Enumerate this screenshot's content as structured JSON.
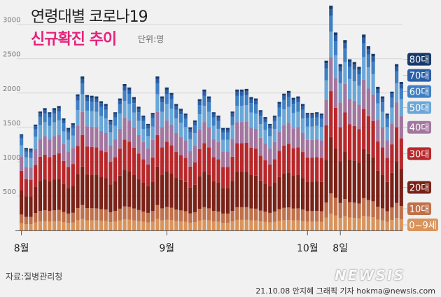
{
  "title": "연령대별 코로나19",
  "subtitle": "신규확진 추이",
  "unit": "단위:명",
  "source": "자료:질병관리청",
  "credit": "21.10.08 안지혜 그래픽 기자 hokma@newsis.com",
  "logo": "NEWSIS",
  "chart_data": {
    "type": "bar",
    "stacked": true,
    "ylim": [
      0,
      3200
    ],
    "yticks": [
      500,
      1000,
      1500,
      2000,
      2500,
      3000
    ],
    "ytick_labels": [
      "500",
      "1000",
      "1500",
      "2000",
      "2500",
      "3000"
    ],
    "x_labels": [
      {
        "index": 0,
        "label": "8월"
      },
      {
        "index": 31,
        "label": "9월"
      },
      {
        "index": 61,
        "label": "10월"
      },
      {
        "index": 68,
        "label": "8일"
      }
    ],
    "totals": [
      1400,
      1200,
      1190,
      1540,
      1730,
      1780,
      1720,
      1780,
      1810,
      1630,
      1490,
      1560,
      1980,
      2240,
      1970,
      1960,
      1950,
      1880,
      1840,
      1610,
      1720,
      1920,
      2130,
      2080,
      1940,
      1800,
      1670,
      1550,
      1710,
      2240,
      1950,
      2080,
      2000,
      1840,
      1770,
      1700,
      1500,
      1600,
      1910,
      2050,
      1950,
      1720,
      1670,
      1490,
      1490,
      1730,
      2050,
      2050,
      2060,
      1940,
      1920,
      1750,
      1650,
      1550,
      1670,
      1870,
      1990,
      2030,
      1930,
      1950,
      1840,
      1710,
      1710,
      1720,
      1700,
      2470,
      3270,
      2880,
      2420,
      2770,
      2490,
      2450,
      2380,
      2850,
      2680,
      2570,
      2090,
      1950,
      1700,
      2020,
      2420,
      2160
    ],
    "series": [
      {
        "name": "0~9세",
        "color": "#d9945c",
        "shares": [
          0.075,
          0.075,
          0.075,
          0.075,
          0.075,
          0.075,
          0.075,
          0.075,
          0.075,
          0.075,
          0.075,
          0.075,
          0.075,
          0.075,
          0.075,
          0.075,
          0.075,
          0.075,
          0.075,
          0.075,
          0.075,
          0.075,
          0.075,
          0.075,
          0.075,
          0.075,
          0.075,
          0.075,
          0.075,
          0.075,
          0.075,
          0.075,
          0.075,
          0.075,
          0.075,
          0.075,
          0.075,
          0.075,
          0.075,
          0.075,
          0.075,
          0.075,
          0.075,
          0.075,
          0.075,
          0.075,
          0.075,
          0.075,
          0.075,
          0.075,
          0.075,
          0.075,
          0.075,
          0.075,
          0.075,
          0.075,
          0.075,
          0.075,
          0.075,
          0.075,
          0.075,
          0.075,
          0.075,
          0.075,
          0.075,
          0.075,
          0.075,
          0.075,
          0.075,
          0.075,
          0.075,
          0.075,
          0.075,
          0.075,
          0.075,
          0.075,
          0.075,
          0.075,
          0.075,
          0.075,
          0.075,
          0.075
        ]
      },
      {
        "name": "10대",
        "color": "#c0704a",
        "shares": [
          0.09,
          0.09,
          0.09,
          0.09,
          0.09,
          0.09,
          0.09,
          0.09,
          0.09,
          0.09,
          0.09,
          0.09,
          0.09,
          0.09,
          0.09,
          0.09,
          0.09,
          0.09,
          0.09,
          0.09,
          0.09,
          0.09,
          0.09,
          0.09,
          0.09,
          0.09,
          0.09,
          0.09,
          0.09,
          0.09,
          0.09,
          0.09,
          0.09,
          0.09,
          0.09,
          0.09,
          0.09,
          0.09,
          0.09,
          0.09,
          0.09,
          0.09,
          0.09,
          0.09,
          0.09,
          0.09,
          0.09,
          0.09,
          0.09,
          0.09,
          0.09,
          0.09,
          0.09,
          0.09,
          0.09,
          0.09,
          0.09,
          0.09,
          0.09,
          0.09,
          0.09,
          0.09,
          0.09,
          0.09,
          0.09,
          0.09,
          0.09,
          0.09,
          0.09,
          0.09,
          0.09,
          0.09,
          0.09,
          0.09,
          0.09,
          0.09,
          0.09,
          0.09,
          0.09,
          0.09,
          0.09,
          0.09
        ]
      },
      {
        "name": "20대",
        "color": "#7a2118",
        "shares": [
          0.25,
          0.25,
          0.25,
          0.25,
          0.25,
          0.25,
          0.25,
          0.25,
          0.25,
          0.25,
          0.25,
          0.25,
          0.25,
          0.25,
          0.25,
          0.25,
          0.25,
          0.25,
          0.25,
          0.25,
          0.25,
          0.25,
          0.25,
          0.25,
          0.25,
          0.25,
          0.25,
          0.25,
          0.25,
          0.25,
          0.25,
          0.25,
          0.25,
          0.25,
          0.25,
          0.25,
          0.25,
          0.25,
          0.25,
          0.25,
          0.25,
          0.25,
          0.25,
          0.25,
          0.25,
          0.25,
          0.25,
          0.25,
          0.25,
          0.25,
          0.25,
          0.25,
          0.25,
          0.25,
          0.25,
          0.25,
          0.25,
          0.25,
          0.25,
          0.25,
          0.25,
          0.25,
          0.25,
          0.25,
          0.25,
          0.25,
          0.25,
          0.25,
          0.25,
          0.25,
          0.25,
          0.25,
          0.25,
          0.25,
          0.25,
          0.25,
          0.25,
          0.25,
          0.25,
          0.25,
          0.25,
          0.25
        ]
      },
      {
        "name": "30대",
        "color": "#b8282b",
        "shares": [
          0.205,
          0.205,
          0.205,
          0.205,
          0.205,
          0.205,
          0.205,
          0.205,
          0.205,
          0.205,
          0.205,
          0.205,
          0.205,
          0.205,
          0.205,
          0.205,
          0.205,
          0.205,
          0.205,
          0.205,
          0.205,
          0.205,
          0.205,
          0.205,
          0.205,
          0.205,
          0.205,
          0.205,
          0.205,
          0.205,
          0.205,
          0.205,
          0.205,
          0.205,
          0.205,
          0.205,
          0.205,
          0.205,
          0.205,
          0.205,
          0.205,
          0.205,
          0.205,
          0.205,
          0.205,
          0.205,
          0.205,
          0.205,
          0.205,
          0.205,
          0.205,
          0.205,
          0.205,
          0.205,
          0.205,
          0.205,
          0.205,
          0.205,
          0.205,
          0.205,
          0.205,
          0.205,
          0.205,
          0.205,
          0.205,
          0.205,
          0.205,
          0.205,
          0.205,
          0.205,
          0.205,
          0.205,
          0.205,
          0.205,
          0.205,
          0.205,
          0.205,
          0.205,
          0.205,
          0.205,
          0.205,
          0.205
        ]
      },
      {
        "name": "40대",
        "color": "#a2769f",
        "shares": [
          0.15,
          0.15,
          0.15,
          0.15,
          0.15,
          0.15,
          0.15,
          0.15,
          0.15,
          0.15,
          0.15,
          0.15,
          0.15,
          0.15,
          0.15,
          0.15,
          0.15,
          0.15,
          0.15,
          0.15,
          0.15,
          0.15,
          0.15,
          0.15,
          0.15,
          0.15,
          0.15,
          0.15,
          0.15,
          0.15,
          0.15,
          0.15,
          0.15,
          0.15,
          0.15,
          0.15,
          0.15,
          0.15,
          0.15,
          0.15,
          0.15,
          0.15,
          0.15,
          0.15,
          0.15,
          0.15,
          0.15,
          0.15,
          0.15,
          0.15,
          0.15,
          0.15,
          0.15,
          0.15,
          0.15,
          0.15,
          0.15,
          0.15,
          0.15,
          0.15,
          0.15,
          0.15,
          0.15,
          0.15,
          0.15,
          0.15,
          0.15,
          0.15,
          0.15,
          0.15,
          0.15,
          0.15,
          0.15,
          0.15,
          0.15,
          0.15,
          0.15,
          0.15,
          0.15,
          0.15,
          0.15,
          0.15
        ]
      },
      {
        "name": "50대",
        "color": "#6aa7d8",
        "shares": [
          0.115,
          0.115,
          0.115,
          0.115,
          0.115,
          0.115,
          0.115,
          0.115,
          0.115,
          0.115,
          0.115,
          0.115,
          0.115,
          0.115,
          0.115,
          0.115,
          0.115,
          0.115,
          0.115,
          0.115,
          0.115,
          0.115,
          0.115,
          0.115,
          0.115,
          0.115,
          0.115,
          0.115,
          0.115,
          0.115,
          0.115,
          0.115,
          0.115,
          0.115,
          0.115,
          0.115,
          0.115,
          0.115,
          0.115,
          0.115,
          0.115,
          0.115,
          0.115,
          0.115,
          0.115,
          0.115,
          0.115,
          0.115,
          0.115,
          0.115,
          0.115,
          0.115,
          0.115,
          0.115,
          0.115,
          0.115,
          0.115,
          0.115,
          0.115,
          0.115,
          0.115,
          0.115,
          0.115,
          0.115,
          0.115,
          0.115,
          0.115,
          0.115,
          0.115,
          0.115,
          0.115,
          0.115,
          0.115,
          0.115,
          0.115,
          0.115,
          0.115,
          0.115,
          0.115,
          0.115,
          0.115,
          0.115
        ]
      },
      {
        "name": "60대",
        "color": "#3f7fc4",
        "shares": [
          0.07,
          0.07,
          0.07,
          0.07,
          0.07,
          0.07,
          0.07,
          0.07,
          0.07,
          0.07,
          0.07,
          0.07,
          0.07,
          0.07,
          0.07,
          0.07,
          0.07,
          0.07,
          0.07,
          0.07,
          0.07,
          0.07,
          0.07,
          0.07,
          0.07,
          0.07,
          0.07,
          0.07,
          0.07,
          0.07,
          0.07,
          0.07,
          0.07,
          0.07,
          0.07,
          0.07,
          0.07,
          0.07,
          0.07,
          0.07,
          0.07,
          0.07,
          0.07,
          0.07,
          0.07,
          0.07,
          0.07,
          0.07,
          0.07,
          0.07,
          0.07,
          0.07,
          0.07,
          0.07,
          0.07,
          0.07,
          0.07,
          0.07,
          0.07,
          0.07,
          0.07,
          0.07,
          0.07,
          0.07,
          0.07,
          0.07,
          0.07,
          0.07,
          0.07,
          0.07,
          0.07,
          0.07,
          0.07,
          0.07,
          0.07,
          0.07,
          0.07,
          0.07,
          0.07,
          0.07,
          0.07,
          0.07
        ]
      },
      {
        "name": "70대",
        "color": "#2a5ea6",
        "shares": [
          0.03,
          0.03,
          0.03,
          0.03,
          0.03,
          0.03,
          0.03,
          0.03,
          0.03,
          0.03,
          0.03,
          0.03,
          0.03,
          0.03,
          0.03,
          0.03,
          0.03,
          0.03,
          0.03,
          0.03,
          0.03,
          0.03,
          0.03,
          0.03,
          0.03,
          0.03,
          0.03,
          0.03,
          0.03,
          0.03,
          0.03,
          0.03,
          0.03,
          0.03,
          0.03,
          0.03,
          0.03,
          0.03,
          0.03,
          0.03,
          0.03,
          0.03,
          0.03,
          0.03,
          0.03,
          0.03,
          0.03,
          0.03,
          0.03,
          0.03,
          0.03,
          0.03,
          0.03,
          0.03,
          0.03,
          0.03,
          0.03,
          0.03,
          0.03,
          0.03,
          0.03,
          0.03,
          0.03,
          0.03,
          0.03,
          0.03,
          0.03,
          0.03,
          0.03,
          0.03,
          0.03,
          0.03,
          0.03,
          0.03,
          0.03,
          0.03,
          0.03,
          0.03,
          0.03,
          0.03,
          0.03,
          0.03
        ]
      },
      {
        "name": "80대",
        "color": "#173a6b",
        "shares": [
          0.015,
          0.015,
          0.015,
          0.015,
          0.015,
          0.015,
          0.015,
          0.015,
          0.015,
          0.015,
          0.015,
          0.015,
          0.015,
          0.015,
          0.015,
          0.015,
          0.015,
          0.015,
          0.015,
          0.015,
          0.015,
          0.015,
          0.015,
          0.015,
          0.015,
          0.015,
          0.015,
          0.015,
          0.015,
          0.015,
          0.015,
          0.015,
          0.015,
          0.015,
          0.015,
          0.015,
          0.015,
          0.015,
          0.015,
          0.015,
          0.015,
          0.015,
          0.015,
          0.015,
          0.015,
          0.015,
          0.015,
          0.015,
          0.015,
          0.015,
          0.015,
          0.015,
          0.015,
          0.015,
          0.015,
          0.015,
          0.015,
          0.015,
          0.015,
          0.015,
          0.015,
          0.015,
          0.015,
          0.015,
          0.015,
          0.015,
          0.015,
          0.015,
          0.015,
          0.015,
          0.015,
          0.015,
          0.015,
          0.015,
          0.015,
          0.015,
          0.015,
          0.015,
          0.015,
          0.015,
          0.015,
          0.015
        ]
      }
    ]
  }
}
